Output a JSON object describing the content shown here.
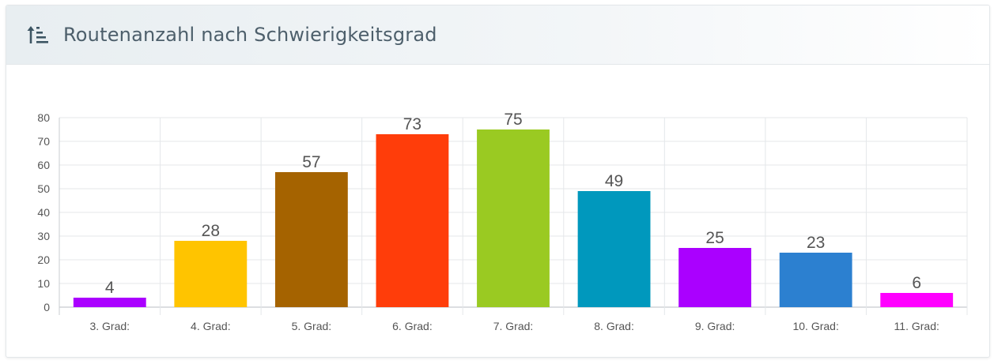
{
  "card": {
    "title": "Routenanzahl nach Schwierigkeitsgrad",
    "icon": "sort-ascending-icon"
  },
  "chart_data": {
    "type": "bar",
    "title": "Routenanzahl nach Schwierigkeitsgrad",
    "categories": [
      "3. Grad:",
      "4. Grad:",
      "5. Grad:",
      "6. Grad:",
      "7. Grad:",
      "8. Grad:",
      "9. Grad:",
      "10. Grad:",
      "11. Grad:"
    ],
    "values": [
      4,
      28,
      57,
      73,
      75,
      49,
      25,
      23,
      6
    ],
    "colors": [
      "#aa00ff",
      "#ffc400",
      "#a56300",
      "#ff3d0a",
      "#9aca22",
      "#0098bd",
      "#aa00ff",
      "#2c80d0",
      "#ff00ff"
    ],
    "ylim": [
      0,
      80
    ],
    "yticks": [
      0,
      10,
      20,
      30,
      40,
      50,
      60,
      70,
      80
    ],
    "grid": true,
    "legend": "none",
    "data_labels": true
  }
}
